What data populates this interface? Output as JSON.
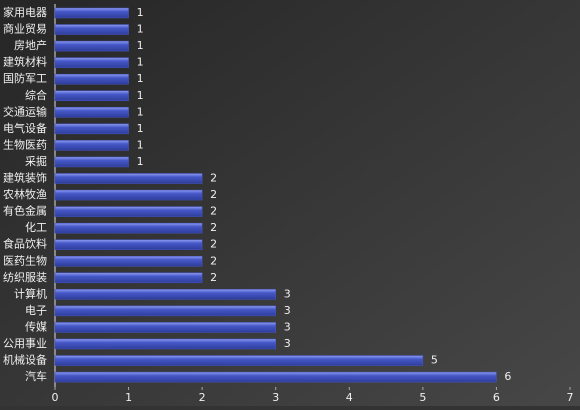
{
  "chart_data": {
    "type": "barh",
    "categories": [
      "家用电器",
      "商业贸易",
      "房地产",
      "建筑材料",
      "国防军工",
      "综合",
      "交通运输",
      "电气设备",
      "生物医药",
      "采掘",
      "建筑装饰",
      "农林牧渔",
      "有色金属",
      "化工",
      "食品饮料",
      "医药生物",
      "纺织服装",
      "计算机",
      "电子",
      "传媒",
      "公用事业",
      "机械设备",
      "汽车"
    ],
    "values": [
      1,
      1,
      1,
      1,
      1,
      1,
      1,
      1,
      1,
      1,
      2,
      2,
      2,
      2,
      2,
      2,
      2,
      3,
      3,
      3,
      3,
      5,
      6
    ],
    "color": "#4658c8",
    "xlim": [
      0,
      7
    ],
    "xticks": [
      0,
      1,
      2,
      3,
      4,
      5,
      6,
      7
    ]
  }
}
